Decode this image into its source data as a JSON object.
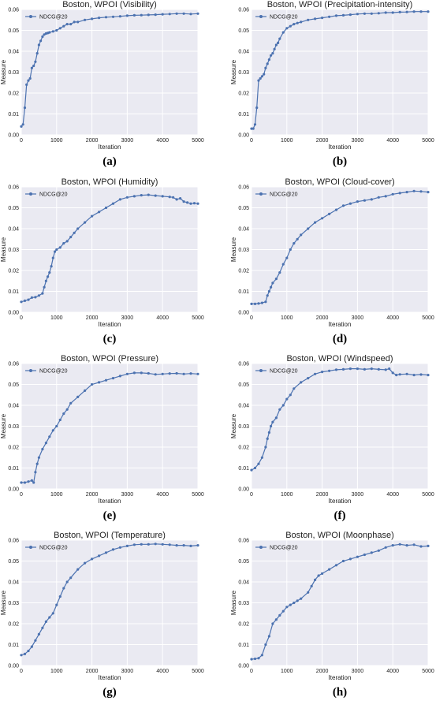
{
  "chart_data": [
    {
      "type": "line",
      "title": "Boston,  WPOI (Visibility)",
      "caption": "(a)",
      "xlabel": "Iteration",
      "ylabel": "Measure",
      "xlim": [
        0,
        5000
      ],
      "ylim": [
        0,
        0.06
      ],
      "xticks": [
        "0",
        "1000",
        "2000",
        "3000",
        "4000",
        "5000"
      ],
      "yticks": [
        "0.00",
        "0.01",
        "0.02",
        "0.03",
        "0.04",
        "0.05",
        "0.06"
      ],
      "grid": true,
      "legend": "top-left",
      "series": [
        {
          "name": "NDCG@20",
          "color": "#4c72b0",
          "x": [
            0,
            50,
            100,
            150,
            200,
            250,
            300,
            350,
            400,
            450,
            500,
            550,
            600,
            650,
            700,
            750,
            800,
            900,
            1000,
            1100,
            1200,
            1300,
            1400,
            1500,
            1600,
            1800,
            2000,
            2200,
            2400,
            2600,
            2800,
            3000,
            3200,
            3400,
            3600,
            3800,
            4000,
            4200,
            4400,
            4600,
            4800,
            5000
          ],
          "y": [
            0.004,
            0.005,
            0.013,
            0.024,
            0.026,
            0.027,
            0.032,
            0.033,
            0.035,
            0.039,
            0.043,
            0.045,
            0.047,
            0.048,
            0.0485,
            0.0487,
            0.049,
            0.0495,
            0.05,
            0.051,
            0.052,
            0.053,
            0.053,
            0.054,
            0.054,
            0.055,
            0.0555,
            0.056,
            0.0563,
            0.0565,
            0.0567,
            0.057,
            0.0572,
            0.0573,
            0.0574,
            0.0575,
            0.0577,
            0.0578,
            0.058,
            0.058,
            0.0578,
            0.058
          ]
        }
      ]
    },
    {
      "type": "line",
      "title": "Boston,  WPOI (Precipitation-intensity)",
      "caption": "(b)",
      "xlabel": "Iteration",
      "ylabel": "Measure",
      "xlim": [
        0,
        5000
      ],
      "ylim": [
        0,
        0.06
      ],
      "xticks": [
        "0",
        "1000",
        "2000",
        "3000",
        "4000",
        "5000"
      ],
      "yticks": [
        "0.00",
        "0.01",
        "0.02",
        "0.03",
        "0.04",
        "0.05",
        "0.06"
      ],
      "grid": true,
      "legend": "top-left",
      "series": [
        {
          "name": "NDCG@20",
          "color": "#4c72b0",
          "x": [
            0,
            50,
            100,
            150,
            200,
            250,
            300,
            350,
            400,
            450,
            500,
            550,
            600,
            650,
            700,
            750,
            800,
            900,
            1000,
            1100,
            1200,
            1300,
            1400,
            1600,
            1800,
            2000,
            2200,
            2400,
            2600,
            2800,
            3000,
            3200,
            3400,
            3600,
            3800,
            4000,
            4200,
            4400,
            4600,
            4800,
            5000
          ],
          "y": [
            0.003,
            0.003,
            0.005,
            0.013,
            0.026,
            0.027,
            0.028,
            0.029,
            0.032,
            0.034,
            0.036,
            0.038,
            0.039,
            0.041,
            0.043,
            0.044,
            0.046,
            0.049,
            0.051,
            0.052,
            0.053,
            0.0535,
            0.054,
            0.055,
            0.0555,
            0.056,
            0.0565,
            0.057,
            0.0572,
            0.0575,
            0.0578,
            0.058,
            0.058,
            0.0582,
            0.0585,
            0.0585,
            0.0587,
            0.0588,
            0.059,
            0.059,
            0.059
          ]
        }
      ]
    },
    {
      "type": "line",
      "title": "Boston,  WPOI (Humidity)",
      "caption": "(c)",
      "xlabel": "Iteration",
      "ylabel": "Measure",
      "xlim": [
        0,
        5000
      ],
      "ylim": [
        0,
        0.06
      ],
      "xticks": [
        "0",
        "1000",
        "2000",
        "3000",
        "4000",
        "5000"
      ],
      "yticks": [
        "0.00",
        "0.01",
        "0.02",
        "0.03",
        "0.04",
        "0.05",
        "0.06"
      ],
      "grid": true,
      "legend": "top-left",
      "series": [
        {
          "name": "NDCG@20",
          "color": "#4c72b0",
          "x": [
            0,
            100,
            200,
            300,
            400,
            500,
            600,
            650,
            700,
            750,
            800,
            850,
            900,
            950,
            1000,
            1100,
            1200,
            1300,
            1400,
            1500,
            1600,
            1800,
            2000,
            2200,
            2400,
            2600,
            2800,
            3000,
            3200,
            3400,
            3600,
            3800,
            4000,
            4200,
            4300,
            4400,
            4500,
            4600,
            4700,
            4800,
            4900,
            5000
          ],
          "y": [
            0.005,
            0.0055,
            0.006,
            0.007,
            0.0072,
            0.008,
            0.009,
            0.012,
            0.015,
            0.017,
            0.019,
            0.022,
            0.026,
            0.029,
            0.03,
            0.031,
            0.033,
            0.034,
            0.036,
            0.038,
            0.04,
            0.043,
            0.046,
            0.048,
            0.05,
            0.052,
            0.054,
            0.055,
            0.0555,
            0.056,
            0.0562,
            0.0558,
            0.0555,
            0.0552,
            0.055,
            0.054,
            0.0545,
            0.053,
            0.0525,
            0.052,
            0.0522,
            0.052
          ]
        }
      ]
    },
    {
      "type": "line",
      "title": "Boston,  WPOI (Cloud-cover)",
      "caption": "(d)",
      "xlabel": "Iteration",
      "ylabel": "Measure",
      "xlim": [
        0,
        5000
      ],
      "ylim": [
        0,
        0.06
      ],
      "xticks": [
        "0",
        "1000",
        "2000",
        "3000",
        "4000",
        "5000"
      ],
      "yticks": [
        "0.00",
        "0.01",
        "0.02",
        "0.03",
        "0.04",
        "0.05",
        "0.06"
      ],
      "grid": true,
      "legend": "top-left",
      "series": [
        {
          "name": "NDCG@20",
          "color": "#4c72b0",
          "x": [
            0,
            100,
            200,
            300,
            400,
            450,
            500,
            550,
            600,
            700,
            800,
            900,
            1000,
            1100,
            1200,
            1300,
            1400,
            1600,
            1800,
            2000,
            2200,
            2400,
            2600,
            2800,
            3000,
            3200,
            3400,
            3600,
            3800,
            4000,
            4200,
            4400,
            4600,
            4800,
            5000
          ],
          "y": [
            0.004,
            0.004,
            0.0042,
            0.0045,
            0.005,
            0.008,
            0.01,
            0.012,
            0.014,
            0.016,
            0.019,
            0.023,
            0.026,
            0.03,
            0.033,
            0.035,
            0.037,
            0.04,
            0.043,
            0.045,
            0.047,
            0.049,
            0.051,
            0.052,
            0.053,
            0.0535,
            0.054,
            0.055,
            0.0555,
            0.0565,
            0.057,
            0.0575,
            0.058,
            0.0578,
            0.0575
          ]
        }
      ]
    },
    {
      "type": "line",
      "title": "Boston,  WPOI (Pressure)",
      "caption": "(e)",
      "xlabel": "Iteration",
      "ylabel": "Measure",
      "xlim": [
        0,
        5000
      ],
      "ylim": [
        0,
        0.06
      ],
      "xticks": [
        "0",
        "1000",
        "2000",
        "3000",
        "4000",
        "5000"
      ],
      "yticks": [
        "0.00",
        "0.01",
        "0.02",
        "0.03",
        "0.04",
        "0.05",
        "0.06"
      ],
      "grid": true,
      "legend": "top-left",
      "series": [
        {
          "name": "NDCG@20",
          "color": "#4c72b0",
          "x": [
            0,
            100,
            200,
            300,
            350,
            400,
            450,
            500,
            600,
            700,
            800,
            900,
            1000,
            1100,
            1200,
            1300,
            1400,
            1600,
            1800,
            2000,
            2200,
            2400,
            2600,
            2800,
            3000,
            3200,
            3400,
            3600,
            3800,
            4000,
            4200,
            4400,
            4600,
            4800,
            5000
          ],
          "y": [
            0.003,
            0.003,
            0.0035,
            0.004,
            0.003,
            0.008,
            0.012,
            0.015,
            0.019,
            0.022,
            0.025,
            0.028,
            0.03,
            0.033,
            0.036,
            0.038,
            0.041,
            0.044,
            0.047,
            0.05,
            0.051,
            0.052,
            0.053,
            0.054,
            0.055,
            0.0555,
            0.0555,
            0.0553,
            0.0548,
            0.055,
            0.0552,
            0.0553,
            0.055,
            0.0552,
            0.055
          ]
        }
      ]
    },
    {
      "type": "line",
      "title": "Boston,  WPOI (Windspeed)",
      "caption": "(f)",
      "xlabel": "Iteration",
      "ylabel": "Measure",
      "xlim": [
        0,
        5000
      ],
      "ylim": [
        0,
        0.06
      ],
      "xticks": [
        "0",
        "1000",
        "2000",
        "3000",
        "4000",
        "5000"
      ],
      "yticks": [
        "0.00",
        "0.01",
        "0.02",
        "0.03",
        "0.04",
        "0.05",
        "0.06"
      ],
      "grid": true,
      "legend": "top-left",
      "series": [
        {
          "name": "NDCG@20",
          "color": "#4c72b0",
          "x": [
            0,
            100,
            200,
            300,
            400,
            450,
            500,
            550,
            600,
            700,
            800,
            900,
            1000,
            1100,
            1200,
            1400,
            1600,
            1800,
            2000,
            2200,
            2400,
            2600,
            2800,
            3000,
            3200,
            3400,
            3600,
            3800,
            3900,
            4000,
            4100,
            4200,
            4400,
            4600,
            4800,
            5000
          ],
          "y": [
            0.009,
            0.01,
            0.012,
            0.015,
            0.02,
            0.024,
            0.027,
            0.03,
            0.032,
            0.034,
            0.038,
            0.04,
            0.043,
            0.045,
            0.048,
            0.051,
            0.053,
            0.055,
            0.056,
            0.0565,
            0.057,
            0.0572,
            0.0575,
            0.0575,
            0.0572,
            0.0575,
            0.0572,
            0.057,
            0.0575,
            0.0555,
            0.0545,
            0.0548,
            0.055,
            0.0545,
            0.0547,
            0.0545
          ]
        }
      ]
    },
    {
      "type": "line",
      "title": "Boston,  WPOI (Temperature)",
      "caption": "(g)",
      "xlabel": "Iteration",
      "ylabel": "Measure",
      "xlim": [
        0,
        5000
      ],
      "ylim": [
        0,
        0.06
      ],
      "xticks": [
        "0",
        "1000",
        "2000",
        "3000",
        "4000",
        "5000"
      ],
      "yticks": [
        "0.00",
        "0.01",
        "0.02",
        "0.03",
        "0.04",
        "0.05",
        "0.06"
      ],
      "grid": true,
      "legend": "top-left",
      "series": [
        {
          "name": "NDCG@20",
          "color": "#4c72b0",
          "x": [
            0,
            100,
            200,
            300,
            400,
            500,
            600,
            700,
            800,
            900,
            1000,
            1100,
            1200,
            1300,
            1400,
            1600,
            1800,
            2000,
            2200,
            2400,
            2600,
            2800,
            3000,
            3200,
            3400,
            3600,
            3800,
            4000,
            4200,
            4400,
            4600,
            4800,
            5000
          ],
          "y": [
            0.005,
            0.0055,
            0.007,
            0.009,
            0.012,
            0.015,
            0.018,
            0.021,
            0.023,
            0.025,
            0.029,
            0.033,
            0.037,
            0.04,
            0.042,
            0.046,
            0.049,
            0.051,
            0.0525,
            0.054,
            0.0555,
            0.0565,
            0.0572,
            0.0578,
            0.058,
            0.058,
            0.0582,
            0.058,
            0.0578,
            0.0575,
            0.0575,
            0.0572,
            0.0575
          ]
        }
      ]
    },
    {
      "type": "line",
      "title": "Boston,  WPOI (Moonphase)",
      "caption": "(h)",
      "xlabel": "Iteration",
      "ylabel": "Measure",
      "xlim": [
        0,
        5000
      ],
      "ylim": [
        0,
        0.06
      ],
      "xticks": [
        "0",
        "1000",
        "2000",
        "3000",
        "4000",
        "5000"
      ],
      "yticks": [
        "0.00",
        "0.01",
        "0.02",
        "0.03",
        "0.04",
        "0.05",
        "0.06"
      ],
      "grid": true,
      "legend": "top-left",
      "series": [
        {
          "name": "NDCG@20",
          "color": "#4c72b0",
          "x": [
            0,
            100,
            200,
            300,
            400,
            500,
            600,
            700,
            800,
            900,
            1000,
            1100,
            1200,
            1300,
            1400,
            1600,
            1700,
            1800,
            1900,
            2000,
            2200,
            2400,
            2600,
            2800,
            3000,
            3200,
            3400,
            3600,
            3800,
            4000,
            4200,
            4400,
            4600,
            4800,
            5000
          ],
          "y": [
            0.003,
            0.0032,
            0.0035,
            0.005,
            0.01,
            0.014,
            0.02,
            0.022,
            0.024,
            0.026,
            0.028,
            0.029,
            0.03,
            0.031,
            0.032,
            0.035,
            0.038,
            0.041,
            0.043,
            0.044,
            0.046,
            0.048,
            0.05,
            0.051,
            0.052,
            0.053,
            0.054,
            0.055,
            0.0565,
            0.0575,
            0.058,
            0.0575,
            0.0578,
            0.057,
            0.0572
          ]
        }
      ]
    }
  ]
}
